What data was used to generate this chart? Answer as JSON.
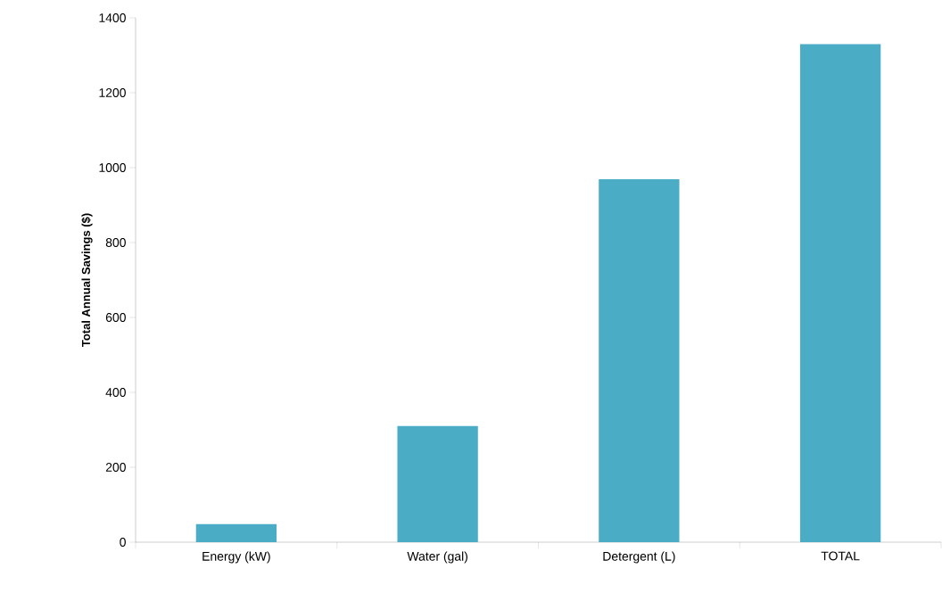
{
  "chart_data": {
    "type": "bar",
    "ylabel": "Total Annual Savings ($)",
    "categories": [
      "Energy (kW)",
      "Water (gal)",
      "Detergent (L)",
      "TOTAL"
    ],
    "values": [
      48,
      310,
      969,
      1330
    ],
    "color": "#4bacc6",
    "ylim": [
      0,
      1400
    ],
    "yticks": [
      0,
      200,
      400,
      600,
      800,
      1000,
      1200,
      1400
    ],
    "grid": false
  }
}
